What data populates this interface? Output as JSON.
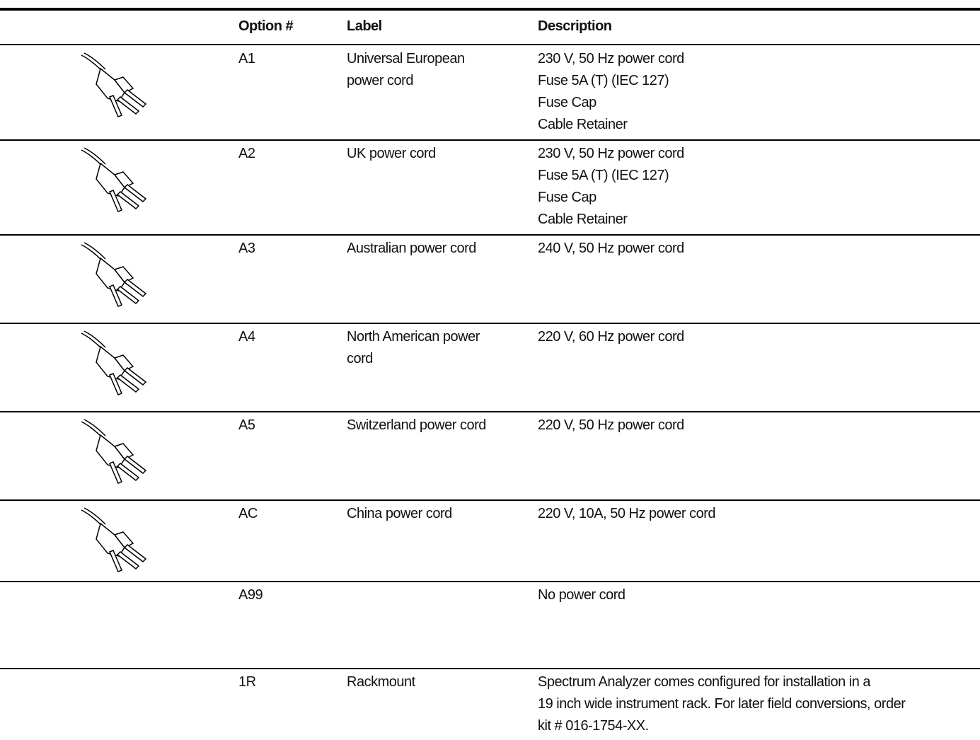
{
  "table": {
    "header": [
      "Option #",
      "Label",
      "Description"
    ],
    "rows": [
      {
        "option": "A1",
        "label": [
          "Universal European",
          "power cord"
        ],
        "description": [
          "230 V, 50 Hz power cord",
          "Fuse 5A (T) (IEC 127)",
          "Fuse Cap",
          "Cable Retainer"
        ]
      },
      {
        "option": "A2",
        "label": [
          "UK power cord"
        ],
        "description": [
          "230 V, 50 Hz power cord",
          "Fuse 5A (T) (IEC 127)",
          "Fuse Cap",
          "Cable Retainer"
        ]
      },
      {
        "option": "A3",
        "label": [
          "Australian power cord"
        ],
        "description": [
          "240 V, 50 Hz power cord"
        ]
      },
      {
        "option": "A4",
        "label": [
          "North American power",
          "cord"
        ],
        "description": [
          "220 V, 60 Hz power cord"
        ]
      },
      {
        "option": "A5",
        "label": [
          "Switzerland power cord"
        ],
        "description": [
          "220 V, 50 Hz power cord"
        ]
      },
      {
        "option": "AC",
        "label": [
          "China power cord"
        ],
        "description": [
          "220 V, 10A, 50 Hz power cord"
        ]
      },
      {
        "option": "A99",
        "label": [],
        "description": [
          "No power cord"
        ]
      },
      {
        "option": "1R",
        "label": [
          "Rackmount"
        ],
        "description": [
          "Spectrum Analyzer comes configured for installation in a",
          "19 inch wide instrument rack. For later field conversions, order",
          "kit # 016-1754-XX."
        ]
      }
    ]
  }
}
